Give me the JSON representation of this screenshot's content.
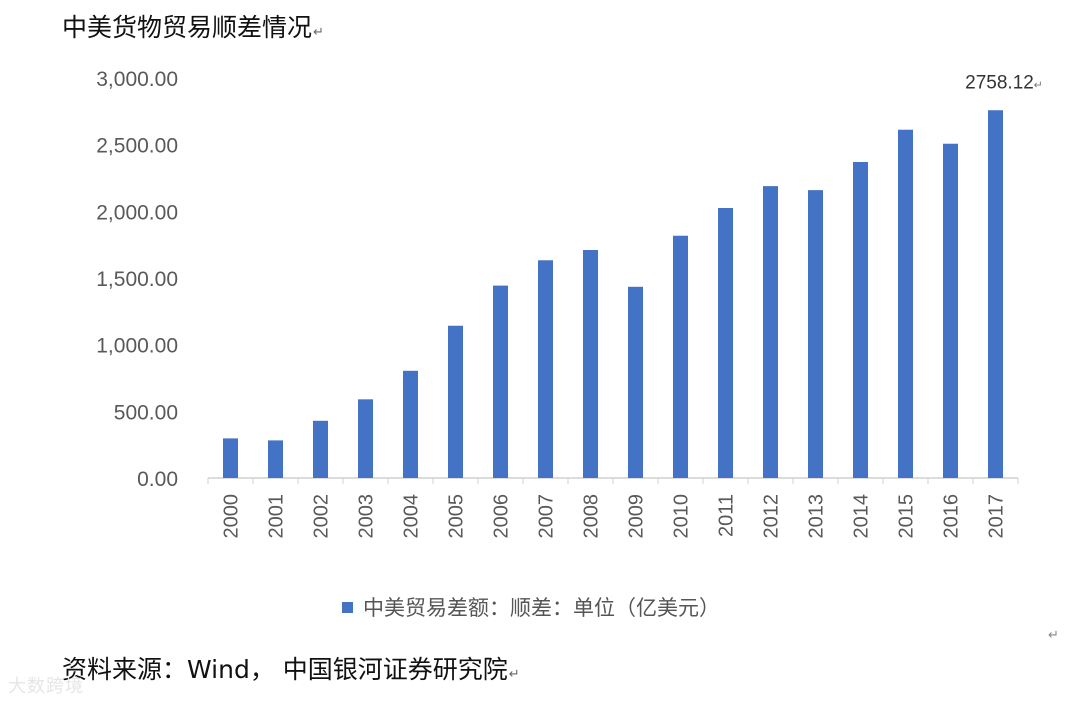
{
  "title": "中美货物贸易顺差情况",
  "source": "资料来源：Wind，  中国银河证券研究院",
  "watermark": "大数跨境",
  "paragraph_mark": "↵",
  "chart_data": {
    "type": "bar",
    "categories": [
      "2000",
      "2001",
      "2002",
      "2003",
      "2004",
      "2005",
      "2006",
      "2007",
      "2008",
      "2009",
      "2010",
      "2011",
      "2012",
      "2013",
      "2014",
      "2015",
      "2016",
      "2017"
    ],
    "series": [
      {
        "name": "中美贸易差额：顺差：单位（亿美元）",
        "values": [
          297,
          282,
          429,
          590,
          804,
          1142,
          1443,
          1633,
          1710,
          1434,
          1817,
          2025,
          2189,
          2159,
          2370,
          2612,
          2507,
          2758.12
        ],
        "color": "#4472C4"
      }
    ],
    "ylim": [
      0,
      3000
    ],
    "yticks": [
      0,
      500,
      1000,
      1500,
      2000,
      2500,
      3000
    ],
    "ytick_labels": [
      "0.00",
      "500.00",
      "1,000.00",
      "1,500.00",
      "2,000.00",
      "2,500.00",
      "3,000.00"
    ],
    "annotation": {
      "category": "2017",
      "text": "2758.12"
    },
    "xlabel": "",
    "ylabel": "",
    "grid": false,
    "legend_position": "bottom"
  }
}
